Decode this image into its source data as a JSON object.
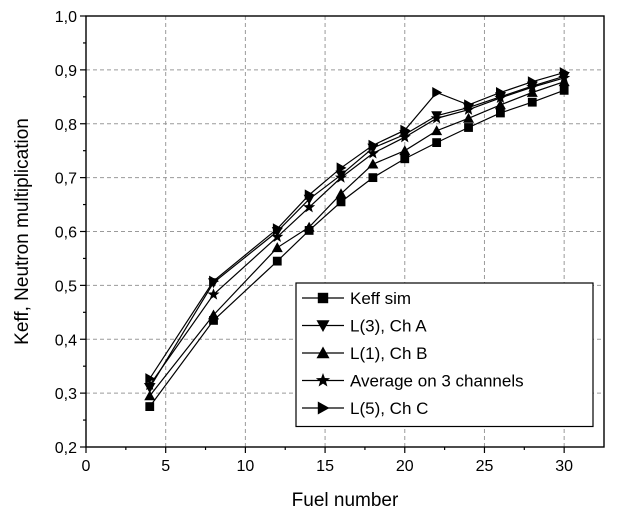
{
  "chart_data": {
    "type": "line",
    "title": "",
    "xlabel": "Fuel number",
    "ylabel": "Keff, Neutron multiplication",
    "xlim": [
      0,
      32.5
    ],
    "ylim": [
      0.2,
      1.0
    ],
    "x_ticks": [
      0,
      5,
      10,
      15,
      20,
      25,
      30
    ],
    "x_tick_labels": [
      "0",
      "5",
      "10",
      "15",
      "20",
      "25",
      "30"
    ],
    "y_ticks": [
      0.2,
      0.3,
      0.4,
      0.5,
      0.6,
      0.7,
      0.8,
      0.9,
      1.0
    ],
    "y_tick_labels": [
      "0,2",
      "0,3",
      "0,4",
      "0,5",
      "0,6",
      "0,7",
      "0,8",
      "0,9",
      "1,0"
    ],
    "grid": true,
    "legend_position": "center-right",
    "series": [
      {
        "name": "Keff sim",
        "marker": "square",
        "x": [
          4,
          8,
          12,
          14,
          16,
          18,
          20,
          22,
          24,
          26,
          28,
          30
        ],
        "y": [
          0.275,
          0.435,
          0.545,
          0.602,
          0.655,
          0.7,
          0.735,
          0.765,
          0.793,
          0.82,
          0.84,
          0.862
        ]
      },
      {
        "name": "L(3), Ch A",
        "marker": "triangle-down",
        "x": [
          4,
          8,
          12,
          14,
          16,
          18,
          20,
          22,
          24,
          26,
          28,
          30
        ],
        "y": [
          0.31,
          0.505,
          0.6,
          0.66,
          0.705,
          0.755,
          0.78,
          0.815,
          0.83,
          0.85,
          0.87,
          0.888
        ]
      },
      {
        "name": "L(1), Ch B",
        "marker": "triangle-up",
        "x": [
          4,
          8,
          12,
          14,
          16,
          18,
          20,
          22,
          24,
          26,
          28,
          30
        ],
        "y": [
          0.295,
          0.445,
          0.57,
          0.608,
          0.67,
          0.725,
          0.75,
          0.787,
          0.81,
          0.835,
          0.858,
          0.878
        ]
      },
      {
        "name": "Average on 3 channels",
        "marker": "star",
        "x": [
          4,
          8,
          12,
          14,
          16,
          18,
          20,
          22,
          24,
          26,
          28,
          30
        ],
        "y": [
          0.315,
          0.483,
          0.59,
          0.645,
          0.7,
          0.745,
          0.775,
          0.81,
          0.826,
          0.848,
          0.868,
          0.885
        ]
      },
      {
        "name": "L(5), Ch C",
        "marker": "triangle-right",
        "x": [
          4,
          8,
          12,
          14,
          16,
          18,
          20,
          22,
          24,
          26,
          28,
          30
        ],
        "y": [
          0.327,
          0.508,
          0.605,
          0.668,
          0.718,
          0.76,
          0.788,
          0.858,
          0.835,
          0.858,
          0.878,
          0.895
        ]
      }
    ]
  }
}
